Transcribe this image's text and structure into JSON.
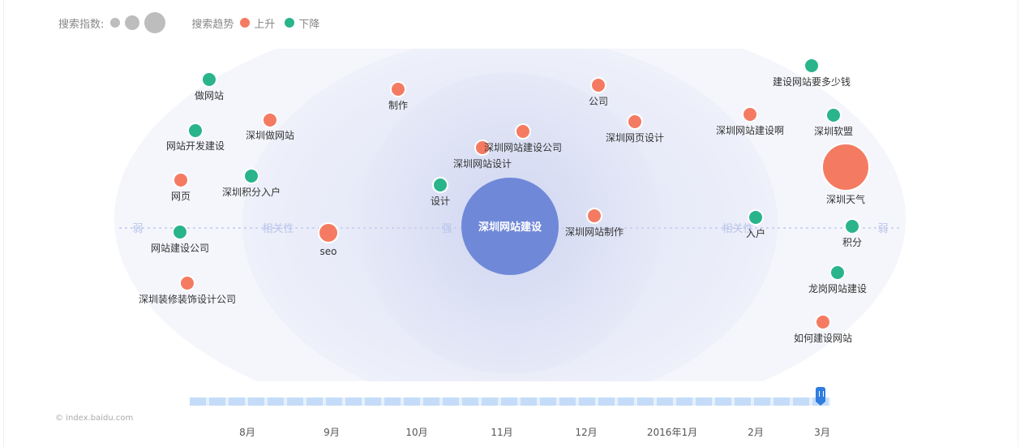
{
  "legend": {
    "index_label": "搜索指数:",
    "trend_label": "搜索趋势",
    "rising_label": "上升",
    "falling_label": "下降"
  },
  "colors": {
    "rising": "#f47b62",
    "falling": "#2ab48c",
    "center": "#7088d8",
    "size_dots": "#bdbdbd",
    "ring_band": "#eef1fb",
    "scale_text": "#b8c4ea"
  },
  "chart_data": {
    "type": "scatter",
    "center_keyword": "深圳网站建设",
    "scale_labels": {
      "weak_left": "弱",
      "relevance_left": "相关性",
      "strong": "强",
      "relevance_right": "相关性",
      "weak_right": "弱"
    },
    "keywords": [
      {
        "word": "做网站",
        "trend": "falling",
        "size": "small"
      },
      {
        "word": "网站开发建设",
        "trend": "falling",
        "size": "small"
      },
      {
        "word": "网页",
        "trend": "rising",
        "size": "small"
      },
      {
        "word": "网站建设公司",
        "trend": "falling",
        "size": "small"
      },
      {
        "word": "深圳装修装饰设计公司",
        "trend": "rising",
        "size": "small"
      },
      {
        "word": "深圳做网站",
        "trend": "rising",
        "size": "small"
      },
      {
        "word": "深圳积分入户",
        "trend": "falling",
        "size": "small"
      },
      {
        "word": "seo",
        "trend": "rising",
        "size": "medium"
      },
      {
        "word": "制作",
        "trend": "rising",
        "size": "small"
      },
      {
        "word": "设计",
        "trend": "falling",
        "size": "small"
      },
      {
        "word": "深圳网站设计",
        "trend": "rising",
        "size": "small"
      },
      {
        "word": "深圳网站建设公司",
        "trend": "rising",
        "size": "small"
      },
      {
        "word": "公司",
        "trend": "rising",
        "size": "small"
      },
      {
        "word": "深圳网页设计",
        "trend": "rising",
        "size": "small"
      },
      {
        "word": "深圳网站制作",
        "trend": "rising",
        "size": "small"
      },
      {
        "word": "深圳网站建设啊",
        "trend": "rising",
        "size": "small"
      },
      {
        "word": "入户",
        "trend": "falling",
        "size": "small"
      },
      {
        "word": "建设网站要多少钱",
        "trend": "falling",
        "size": "small"
      },
      {
        "word": "深圳软盟",
        "trend": "falling",
        "size": "small"
      },
      {
        "word": "深圳天气",
        "trend": "rising",
        "size": "large"
      },
      {
        "word": "积分",
        "trend": "falling",
        "size": "small"
      },
      {
        "word": "龙岗网站建设",
        "trend": "falling",
        "size": "small"
      },
      {
        "word": "如何建设网站",
        "trend": "rising",
        "size": "small"
      }
    ],
    "timeline": {
      "months": [
        "8月",
        "9月",
        "10月",
        "11月",
        "12月",
        "2016年1月",
        "2月",
        "3月"
      ],
      "selected": "3月"
    }
  },
  "footer": {
    "credit": "© index.baidu.com"
  }
}
